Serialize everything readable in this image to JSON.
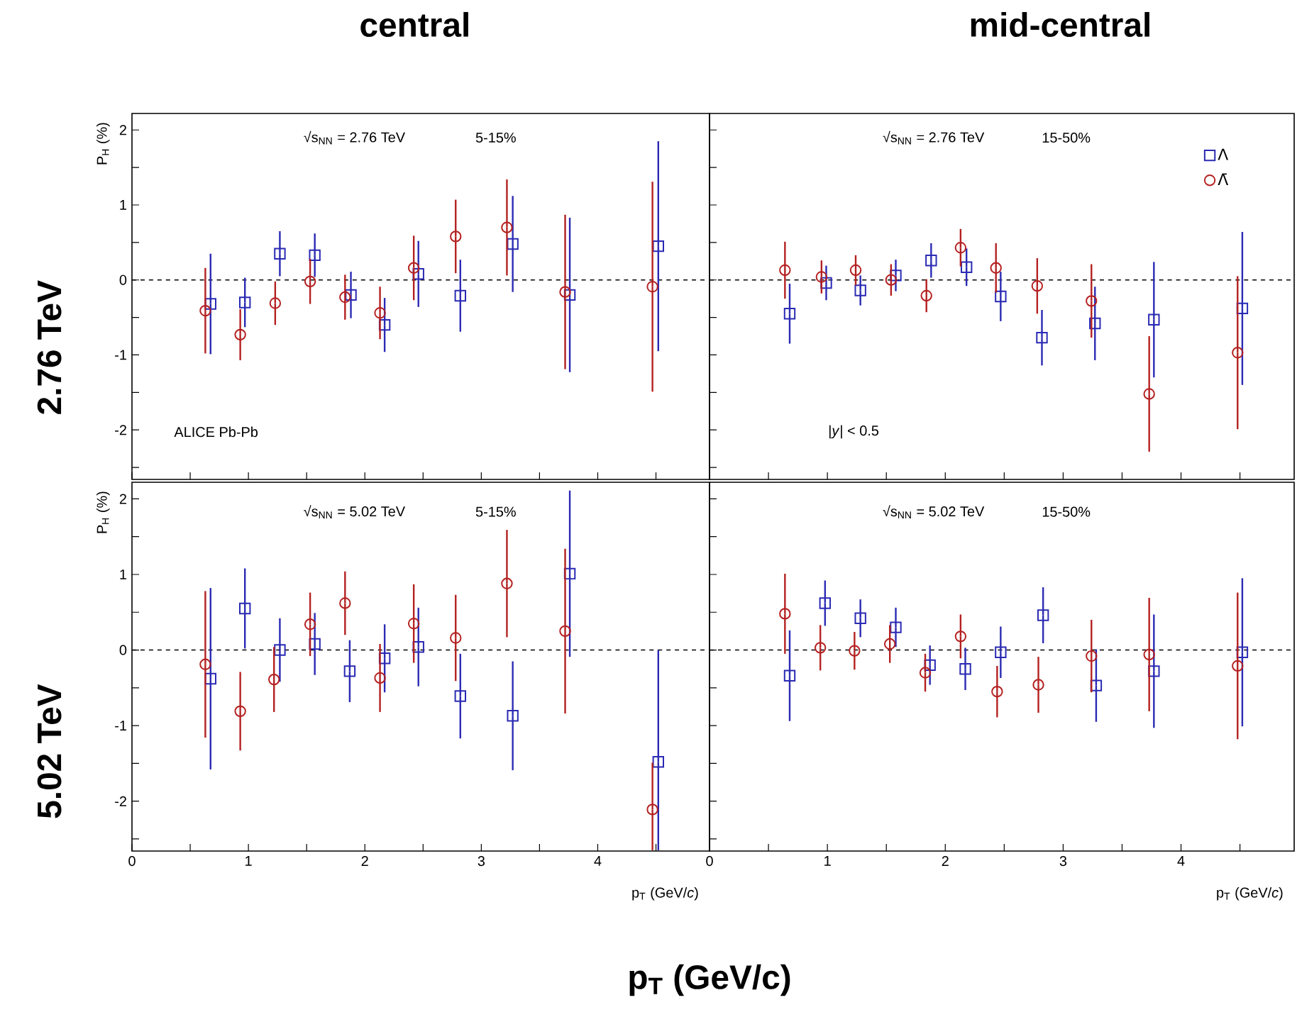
{
  "chart_data": [
    {
      "type": "scatter",
      "title": "central",
      "ylabel": "P$_{H}$ (%)",
      "xlim": [
        0,
        4.96
      ],
      "ylim": [
        -2.66,
        2.22
      ],
      "xticks": [
        0,
        {
          "value": 0.5,
          "label": null
        },
        1,
        {
          "value": 1.5,
          "label": null
        },
        2,
        {
          "value": 2.5,
          "label": null
        },
        3,
        {
          "value": 3.5,
          "label": null
        },
        4,
        {
          "value": 4.5,
          "label": null
        }
      ],
      "yticks": [
        {
          "value": -2.5,
          "label": null
        },
        -2,
        {
          "value": -1.5,
          "label": null
        },
        -1,
        {
          "value": -0.5,
          "label": null
        },
        0,
        {
          "value": 0.5,
          "label": null
        },
        1,
        {
          "value": 1.5,
          "label": null
        },
        2
      ],
      "tick_labels": "y",
      "ref_lines": [
        {
          "axis": "y",
          "value": 0,
          "line_style": "dashed"
        }
      ],
      "annotations": [
        "√s$_{NN}$ = 2.76 TeV",
        "5-15%",
        "ALICE  Pb-Pb",
        "2.76 TeV"
      ],
      "series": [
        {
          "color": "#2a2ab4",
          "marker": "square",
          "x": [
            0.675,
            0.97,
            1.27,
            1.57,
            1.88,
            2.17,
            2.46,
            2.82,
            3.27,
            3.76,
            4.52
          ],
          "values": [
            -0.32,
            -0.3,
            0.35,
            0.33,
            -0.2,
            -0.6,
            0.08,
            -0.21,
            0.48,
            -0.2,
            0.45
          ],
          "errors": [
            0.67,
            0.33,
            0.3,
            0.29,
            0.31,
            0.36,
            0.44,
            0.48,
            0.64,
            1.03,
            1.4
          ]
        },
        {
          "color": "#b42020",
          "marker": "circle",
          "x": [
            0.63,
            0.93,
            1.23,
            1.53,
            1.83,
            2.13,
            2.42,
            2.78,
            3.22,
            3.72,
            4.47
          ],
          "values": [
            -0.41,
            -0.73,
            -0.31,
            -0.02,
            -0.23,
            -0.44,
            0.16,
            0.58,
            0.7,
            -0.16,
            -0.09
          ],
          "errors": [
            0.57,
            0.34,
            0.29,
            0.3,
            0.3,
            0.35,
            0.43,
            0.49,
            0.64,
            1.03,
            1.4
          ]
        }
      ]
    },
    {
      "type": "scatter",
      "title": "mid-central",
      "xlim": [
        0,
        4.96
      ],
      "ylim": [
        -2.66,
        2.22
      ],
      "xticks": [
        0,
        {
          "value": 0.5,
          "label": null
        },
        1,
        {
          "value": 1.5,
          "label": null
        },
        2,
        {
          "value": 2.5,
          "label": null
        },
        3,
        {
          "value": 3.5,
          "label": null
        },
        4,
        {
          "value": 4.5,
          "label": null
        }
      ],
      "yticks": [
        {
          "value": -2.5,
          "label": null
        },
        -2,
        {
          "value": -1.5,
          "label": null
        },
        -1,
        {
          "value": -0.5,
          "label": null
        },
        0,
        {
          "value": 0.5,
          "label": null
        },
        1,
        {
          "value": 1.5,
          "label": null
        },
        2
      ],
      "tick_labels": false,
      "legend": "top right",
      "ref_lines": [
        {
          "axis": "y",
          "value": 0,
          "line_style": "dashed"
        }
      ],
      "annotations": [
        "√s$_{NN}$ = 2.76 TeV",
        "15-50%",
        "|*y*| < 0.5"
      ],
      "series": [
        {
          "name": "Λ",
          "color": "#2a2ab4",
          "marker": "square",
          "x": [
            0.68,
            0.99,
            1.28,
            1.58,
            1.88,
            2.18,
            2.47,
            2.82,
            3.27,
            3.77,
            4.52
          ],
          "values": [
            -0.45,
            -0.04,
            -0.14,
            0.06,
            0.26,
            0.17,
            -0.22,
            -0.77,
            -0.58,
            -0.53,
            -0.38
          ],
          "errors": [
            0.4,
            0.23,
            0.2,
            0.21,
            0.23,
            0.25,
            0.33,
            0.37,
            0.49,
            0.77,
            1.02
          ]
        },
        {
          "name": "Λ̄",
          "color": "#b42020",
          "marker": "circle",
          "x": [
            0.64,
            0.95,
            1.24,
            1.54,
            1.84,
            2.13,
            2.43,
            2.78,
            3.24,
            3.73,
            4.48
          ],
          "values": [
            0.13,
            0.04,
            0.13,
            0.0,
            -0.21,
            0.43,
            0.16,
            -0.08,
            -0.28,
            -1.52,
            -0.97
          ],
          "errors": [
            0.38,
            0.22,
            0.2,
            0.21,
            0.22,
            0.25,
            0.33,
            0.37,
            0.49,
            0.77,
            1.02
          ]
        }
      ]
    },
    {
      "type": "scatter",
      "xlabel": "p$_{T}$ (GeV/*c*)",
      "ylabel": "P$_{H}$ (%)",
      "xlim": [
        0,
        4.96
      ],
      "ylim": [
        -2.66,
        2.22
      ],
      "xticks": [
        0,
        {
          "value": 0.5,
          "label": null
        },
        1,
        {
          "value": 1.5,
          "label": null
        },
        2,
        {
          "value": 2.5,
          "label": null
        },
        3,
        {
          "value": 3.5,
          "label": null
        },
        4,
        {
          "value": 4.5,
          "label": null
        }
      ],
      "yticks": [
        {
          "value": -2.5,
          "label": null
        },
        -2,
        {
          "value": -1.5,
          "label": null
        },
        -1,
        {
          "value": -0.5,
          "label": null
        },
        0,
        {
          "value": 0.5,
          "label": null
        },
        1,
        {
          "value": 1.5,
          "label": null
        },
        2
      ],
      "ref_lines": [
        {
          "axis": "y",
          "value": 0,
          "line_style": "dashed"
        }
      ],
      "annotations": [
        "√s$_{NN}$ = 5.02 TeV",
        "5-15%",
        "5.02 TeV",
        "p$_{T}$ (GeV/c)"
      ],
      "series": [
        {
          "color": "#2a2ab4",
          "marker": "square",
          "x": [
            0.675,
            0.97,
            1.27,
            1.57,
            1.87,
            2.17,
            2.46,
            2.82,
            3.27,
            3.76,
            4.52
          ],
          "values": [
            -0.38,
            0.55,
            0.0,
            0.08,
            -0.28,
            -0.11,
            0.04,
            -0.61,
            -0.87,
            1.01,
            -1.48
          ],
          "errors": [
            1.2,
            0.53,
            0.42,
            0.41,
            0.41,
            0.45,
            0.52,
            0.56,
            0.72,
            1.1,
            [
              -2.65,
              0.0
            ]
          ]
        },
        {
          "color": "#b42020",
          "marker": "circle",
          "x": [
            0.63,
            0.93,
            1.22,
            1.53,
            1.83,
            2.13,
            2.42,
            2.78,
            3.22,
            3.72,
            4.47
          ],
          "values": [
            -0.19,
            -0.81,
            -0.39,
            0.34,
            0.62,
            -0.37,
            0.35,
            0.16,
            0.88,
            0.25,
            -2.11
          ],
          "errors": [
            0.97,
            0.52,
            0.43,
            0.42,
            0.42,
            0.45,
            0.52,
            0.57,
            0.71,
            1.09,
            [
              -2.65,
              -1.49
            ]
          ]
        }
      ]
    },
    {
      "type": "scatter",
      "xlabel": "p$_{T}$ (GeV/*c*)",
      "xlim": [
        0,
        4.96
      ],
      "ylim": [
        -2.66,
        2.22
      ],
      "xticks": [
        0,
        {
          "value": 0.5,
          "label": null
        },
        1,
        {
          "value": 1.5,
          "label": null
        },
        2,
        {
          "value": 2.5,
          "label": null
        },
        3,
        {
          "value": 3.5,
          "label": null
        },
        4,
        {
          "value": 4.5,
          "label": null
        }
      ],
      "yticks": [
        {
          "value": -2.5,
          "label": null
        },
        -2,
        {
          "value": -1.5,
          "label": null
        },
        -1,
        {
          "value": -0.5,
          "label": null
        },
        0,
        {
          "value": 0.5,
          "label": null
        },
        1,
        {
          "value": 1.5,
          "label": null
        },
        2
      ],
      "tick_labels": "x",
      "ref_lines": [
        {
          "axis": "y",
          "value": 0,
          "line_style": "dashed"
        }
      ],
      "annotations": [
        "√s$_{NN}$ = 5.02 TeV",
        "15-50%"
      ],
      "series": [
        {
          "color": "#2a2ab4",
          "marker": "square",
          "x": [
            0.68,
            0.98,
            1.28,
            1.58,
            1.87,
            2.17,
            2.47,
            2.83,
            3.28,
            3.77,
            4.52
          ],
          "values": [
            -0.34,
            0.62,
            0.42,
            0.3,
            -0.2,
            -0.25,
            -0.03,
            0.46,
            -0.47,
            -0.28,
            -0.03
          ],
          "errors": [
            0.6,
            0.3,
            0.25,
            0.26,
            0.26,
            0.28,
            0.34,
            0.37,
            0.48,
            0.75,
            0.98
          ]
        },
        {
          "color": "#b42020",
          "marker": "circle",
          "x": [
            0.64,
            0.94,
            1.23,
            1.53,
            1.83,
            2.13,
            2.44,
            2.79,
            3.24,
            3.73,
            4.48
          ],
          "values": [
            0.48,
            0.03,
            -0.01,
            0.08,
            -0.3,
            0.18,
            -0.55,
            -0.46,
            -0.08,
            -0.06,
            -0.21
          ],
          "errors": [
            0.53,
            0.3,
            0.25,
            0.25,
            0.25,
            0.29,
            0.34,
            0.37,
            0.48,
            0.75,
            0.97
          ]
        }
      ]
    }
  ]
}
